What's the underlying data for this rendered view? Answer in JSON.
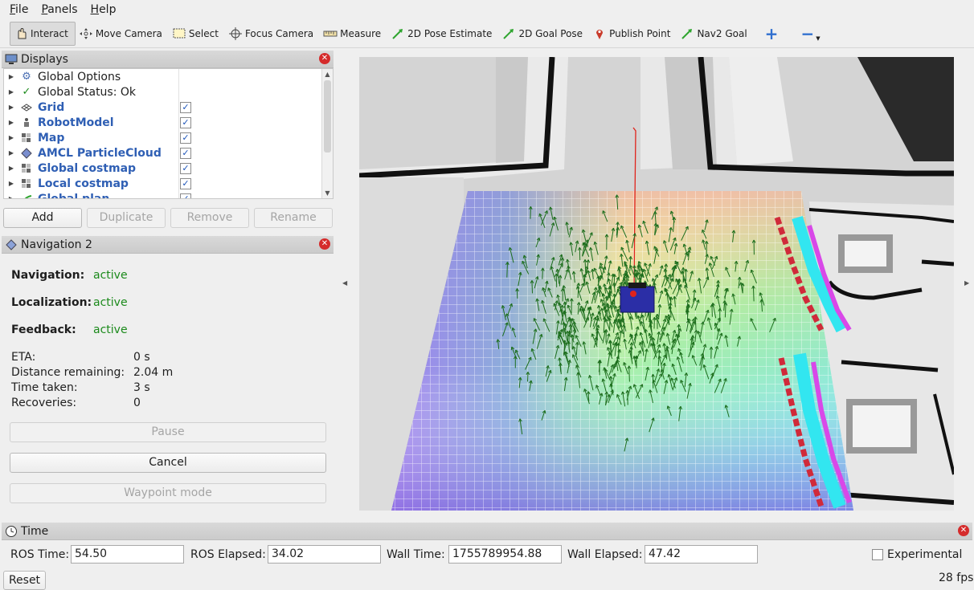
{
  "menu": [
    {
      "underline": "F",
      "rest": "ile"
    },
    {
      "underline": "P",
      "rest": "anels"
    },
    {
      "underline": "H",
      "rest": "elp"
    }
  ],
  "toolbar": {
    "interact": "Interact",
    "move_camera": "Move Camera",
    "select": "Select",
    "focus_camera": "Focus Camera",
    "measure": "Measure",
    "pose_estimate": "2D Pose Estimate",
    "goal_pose": "2D Goal Pose",
    "publish_point": "Publish Point",
    "nav2_goal": "Nav2 Goal",
    "add_tool": "+",
    "remove_tool": "−"
  },
  "displays": {
    "title": "Displays",
    "items": [
      {
        "label": "Global Options",
        "checked": null,
        "link": false
      },
      {
        "label": "Global Status: Ok",
        "checked": null,
        "link": false
      },
      {
        "label": "Grid",
        "checked": true,
        "link": true
      },
      {
        "label": "RobotModel",
        "checked": true,
        "link": true
      },
      {
        "label": "Map",
        "checked": true,
        "link": true
      },
      {
        "label": "AMCL ParticleCloud",
        "checked": true,
        "link": true
      },
      {
        "label": "Global costmap",
        "checked": true,
        "link": true
      },
      {
        "label": "Local costmap",
        "checked": true,
        "link": true
      },
      {
        "label": "Global plan",
        "checked": true,
        "link": true
      }
    ],
    "buttons": {
      "add": "Add",
      "duplicate": "Duplicate",
      "remove": "Remove",
      "rename": "Rename"
    }
  },
  "navigation": {
    "title": "Navigation 2",
    "navigation_label": "Navigation:",
    "navigation_value": "active",
    "localization_label": "Localization:",
    "localization_value": "active",
    "feedback_label": "Feedback:",
    "feedback_value": "active",
    "eta_label": "ETA:",
    "eta_value": "0 s",
    "distance_label": "Distance remaining:",
    "distance_value": "2.04 m",
    "time_label": "Time taken:",
    "time_value": "3 s",
    "recoveries_label": "Recoveries:",
    "recoveries_value": "0",
    "pause": "Pause",
    "cancel": "Cancel",
    "waypoint": "Waypoint mode"
  },
  "time": {
    "title": "Time",
    "ros_time_label": "ROS Time:",
    "ros_time": "54.50",
    "ros_elapsed_label": "ROS Elapsed:",
    "ros_elapsed": "34.02",
    "wall_time_label": "Wall Time:",
    "wall_time": "1755789954.88",
    "wall_elapsed_label": "Wall Elapsed:",
    "wall_elapsed": "47.42",
    "experimental": "Experimental",
    "experimental_checked": false,
    "reset": "Reset",
    "fps": "28 fps"
  },
  "colors": {
    "accent_link": "#2f5fb4",
    "active_green": "#1b8a1b",
    "close_red": "#d52b2b",
    "particle_green": "#1d6e1d"
  }
}
